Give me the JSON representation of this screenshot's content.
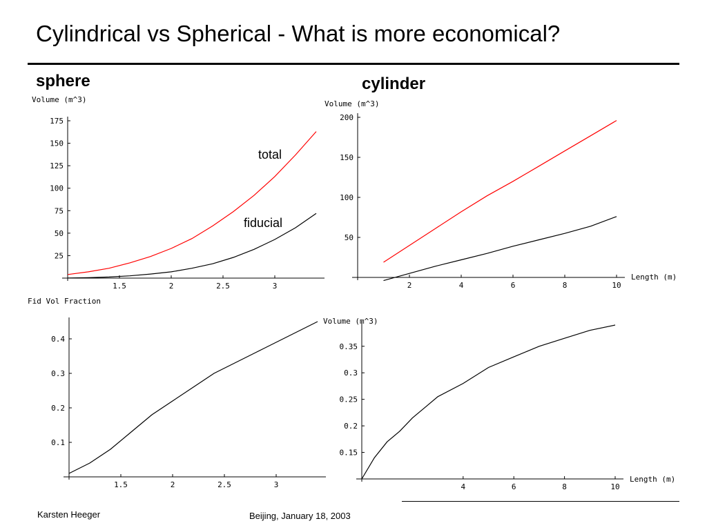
{
  "slide": {
    "title": "Cylindrical vs Spherical - What is more economical?",
    "sphere_label": "sphere",
    "cylinder_label": "cylinder",
    "footer_left": "Karsten Heeger",
    "footer_center": "Beijing, January 18, 2003"
  },
  "chart_data": [
    {
      "type": "line",
      "panel": "sphere-volume",
      "ylabel": "Volume (m^3)",
      "xlabel": "",
      "xlim": [
        1.0,
        3.4
      ],
      "ylim": [
        0,
        175
      ],
      "xticks": [
        "1.5",
        "2",
        "2.5",
        "3"
      ],
      "yticks": [
        "25",
        "50",
        "75",
        "100",
        "125",
        "150",
        "175"
      ],
      "series": [
        {
          "name": "total",
          "color": "#ff0000",
          "x": [
            1.0,
            1.2,
            1.4,
            1.6,
            1.8,
            2.0,
            2.2,
            2.4,
            2.6,
            2.8,
            3.0,
            3.2,
            3.4
          ],
          "y": [
            4,
            7,
            11,
            17,
            24,
            33,
            44,
            58,
            74,
            92,
            113,
            137,
            163
          ]
        },
        {
          "name": "fiducial",
          "color": "#000000",
          "x": [
            1.0,
            1.2,
            1.4,
            1.6,
            1.8,
            2.0,
            2.2,
            2.4,
            2.6,
            2.8,
            3.0,
            3.2,
            3.4
          ],
          "y": [
            0.1,
            0.5,
            1.2,
            2.5,
            4.5,
            7,
            11,
            16,
            23,
            32,
            43,
            56,
            72
          ]
        }
      ],
      "annotations": [
        "total",
        "fiducial"
      ]
    },
    {
      "type": "line",
      "panel": "cylinder-volume",
      "ylabel": "Volume (m^3)",
      "xlabel": "Length (m)",
      "xlim": [
        0,
        10
      ],
      "ylim": [
        0,
        200
      ],
      "xticks": [
        "2",
        "4",
        "6",
        "8",
        "10"
      ],
      "yticks": [
        "50",
        "100",
        "150",
        "200"
      ],
      "series": [
        {
          "color": "#ff0000",
          "x": [
            1,
            2,
            3,
            4,
            5,
            6,
            7,
            8,
            9,
            10
          ],
          "y": [
            19,
            40,
            61,
            82,
            102,
            120,
            139,
            158,
            177,
            196
          ]
        },
        {
          "color": "#000000",
          "x": [
            1,
            2,
            3,
            4,
            5,
            6,
            7,
            8,
            9,
            10
          ],
          "y": [
            -4,
            5,
            14,
            22,
            30,
            39,
            47,
            55,
            64,
            76
          ]
        }
      ]
    },
    {
      "type": "line",
      "panel": "sphere-fraction",
      "ylabel": "Fid Vol Fraction",
      "xlabel": "",
      "xlim": [
        1.0,
        3.4
      ],
      "ylim": [
        0,
        0.45
      ],
      "xticks": [
        "1.5",
        "2",
        "2.5",
        "3"
      ],
      "yticks": [
        "0.1",
        "0.2",
        "0.3",
        "0.4"
      ],
      "series": [
        {
          "color": "#000000",
          "x": [
            1.0,
            1.2,
            1.4,
            1.6,
            1.8,
            2.0,
            2.2,
            2.4,
            2.6,
            2.8,
            3.0,
            3.2,
            3.4
          ],
          "y": [
            0.01,
            0.04,
            0.08,
            0.13,
            0.18,
            0.22,
            0.26,
            0.3,
            0.33,
            0.36,
            0.39,
            0.42,
            0.45
          ]
        }
      ]
    },
    {
      "type": "line",
      "panel": "cylinder-fraction",
      "ylabel": "Volume (m^3)",
      "xlabel": "Length (m)",
      "xlim": [
        0,
        10
      ],
      "ylim": [
        0.1,
        0.39
      ],
      "xticks": [
        "4",
        "6",
        "8",
        "10"
      ],
      "yticks": [
        "0.15",
        "0.2",
        "0.25",
        "0.3",
        "0.35"
      ],
      "series": [
        {
          "color": "#000000",
          "x": [
            0,
            0.5,
            1,
            1.5,
            2,
            2.5,
            3,
            4,
            5,
            6,
            7,
            8,
            9,
            10
          ],
          "y": [
            0.1,
            0.14,
            0.17,
            0.19,
            0.215,
            0.235,
            0.255,
            0.28,
            0.31,
            0.33,
            0.35,
            0.365,
            0.38,
            0.39
          ]
        }
      ]
    }
  ]
}
